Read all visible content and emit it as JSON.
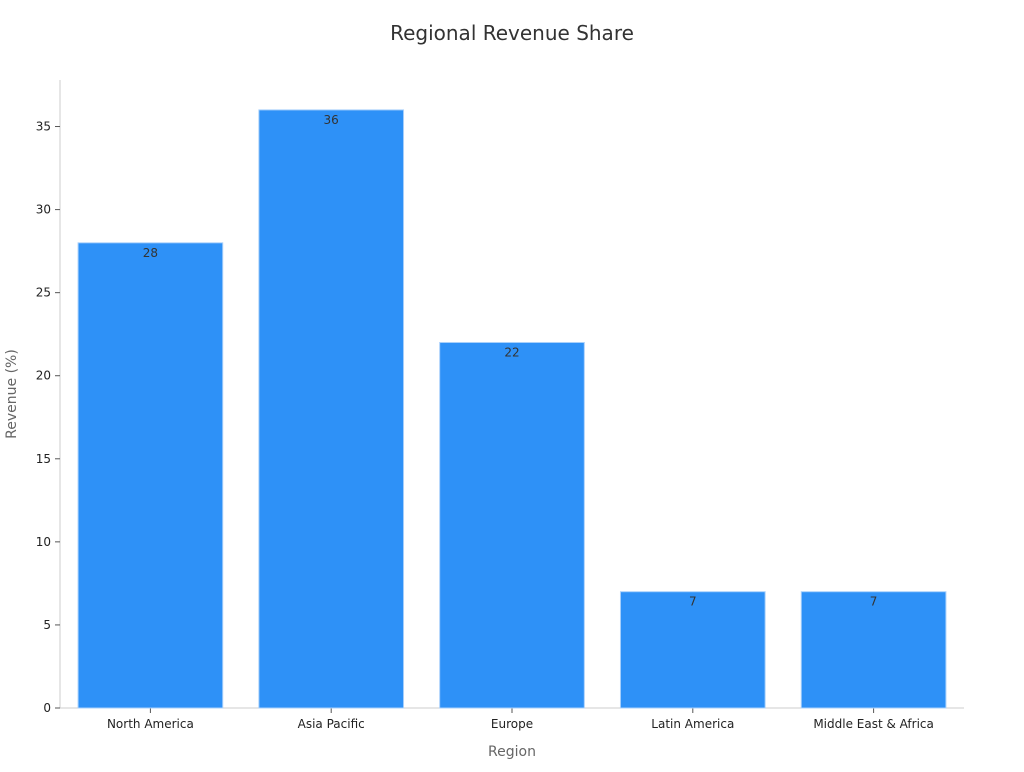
{
  "chart_data": {
    "type": "bar",
    "title": "Regional Revenue Share",
    "xlabel": "Region",
    "ylabel": "Revenue (%)",
    "categories": [
      "North America",
      "Asia Pacific",
      "Europe",
      "Latin America",
      "Middle East & Africa"
    ],
    "values": [
      28,
      36,
      22,
      7,
      7
    ],
    "ylim": [
      0,
      37.8
    ],
    "yticks": [
      0,
      5,
      10,
      15,
      20,
      25,
      30,
      35
    ],
    "data_labels": [
      "28",
      "36",
      "22",
      "7",
      "7"
    ],
    "grid": false,
    "legend": "none",
    "colors": {
      "bar": "#2e91f7",
      "bar_edge": "#a8d0fb",
      "axis": "#cccccc"
    }
  }
}
